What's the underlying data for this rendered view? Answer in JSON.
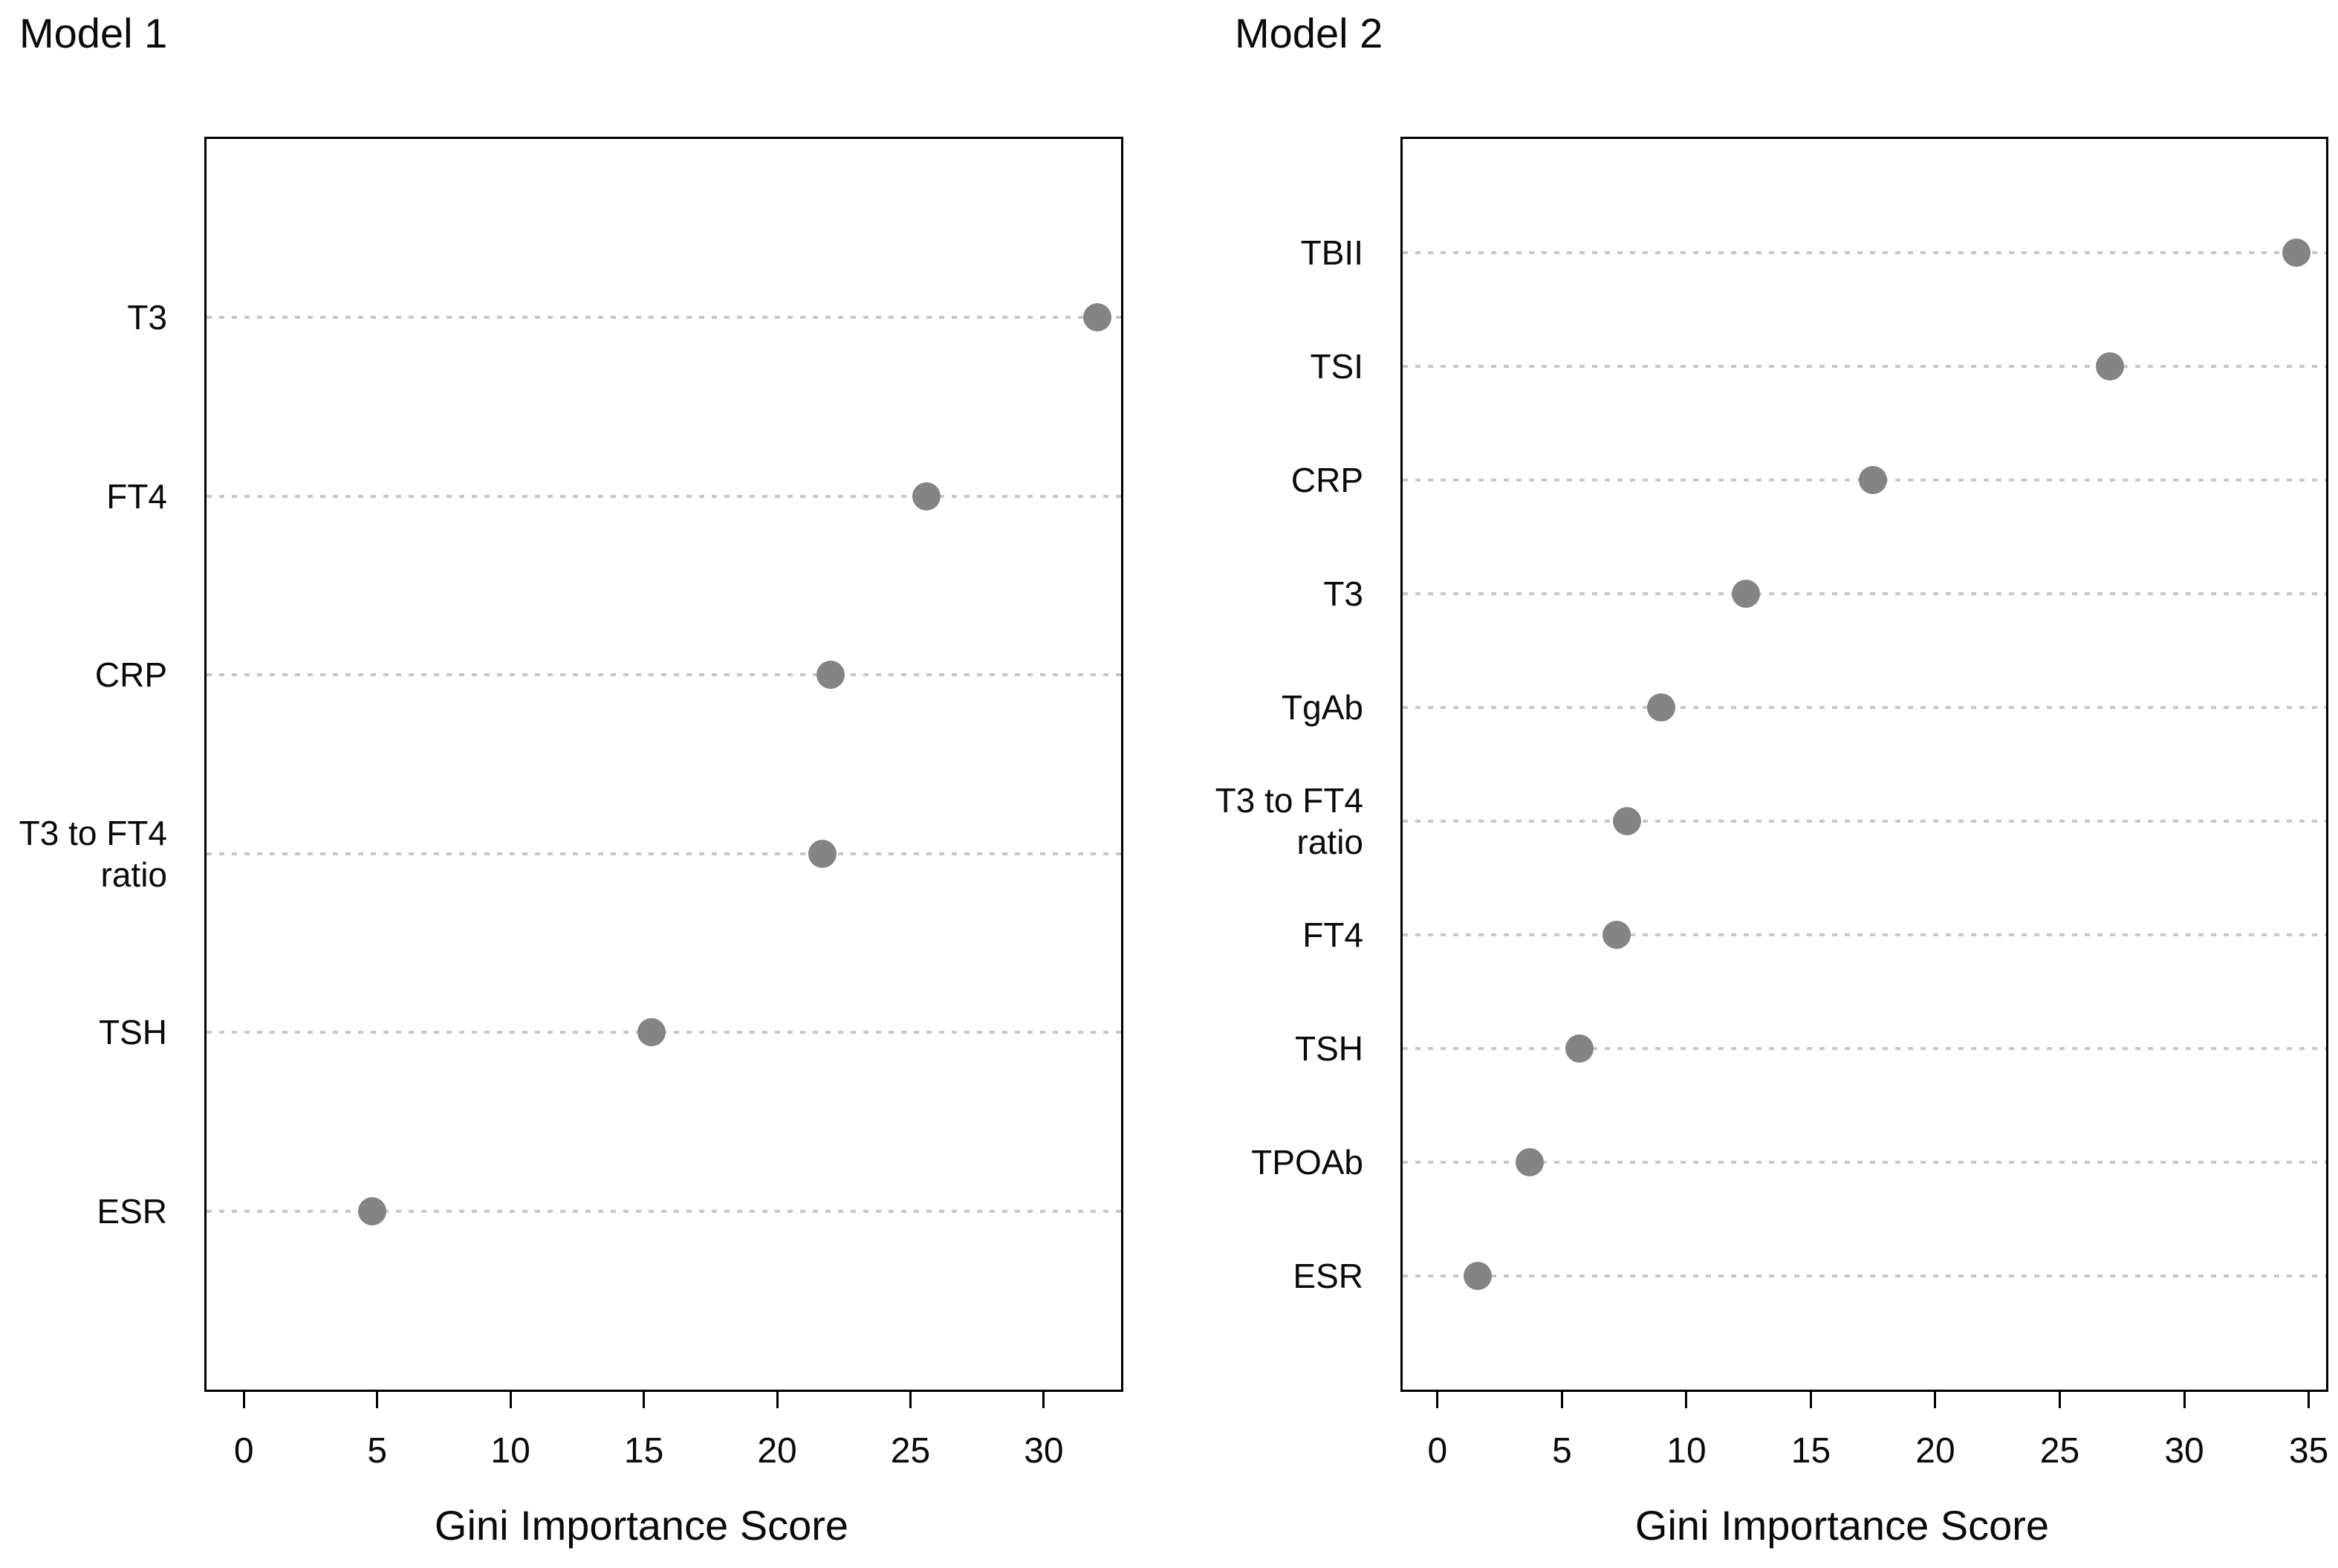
{
  "figure": {
    "background": "#ffffff"
  },
  "colors": {
    "dot": "#848484",
    "grid": "#c7c7c7",
    "axis": "#000000",
    "text": "#0a0a0a"
  },
  "chart_data": [
    {
      "type": "scatter",
      "variant": "cleveland-dot-plot",
      "title": "Model 1",
      "xlabel": "Gini Importance Score",
      "ylabel": "",
      "categories": [
        "T3",
        "FT4",
        "CRP",
        "T3 to FT4\nratio",
        "TSH",
        "ESR"
      ],
      "values": [
        32.0,
        25.6,
        22.0,
        21.7,
        15.3,
        4.8
      ],
      "ticks": [
        0,
        5,
        10,
        15,
        20,
        25,
        30
      ],
      "xlim": [
        -1.4,
        32.9
      ],
      "grid": "horizontal-dotted",
      "legend": "none"
    },
    {
      "type": "scatter",
      "variant": "cleveland-dot-plot",
      "title": "Model 2",
      "xlabel": "Gini Importance Score",
      "ylabel": "",
      "categories": [
        "TBII",
        "TSI",
        "CRP",
        "T3",
        "TgAb",
        "T3 to FT4\nratio",
        "FT4",
        "TSH",
        "TPOAb",
        "ESR"
      ],
      "values": [
        34.5,
        27.0,
        17.5,
        12.4,
        9.0,
        7.6,
        7.2,
        5.7,
        3.7,
        1.6
      ],
      "ticks": [
        0,
        5,
        10,
        15,
        20,
        25,
        30,
        35
      ],
      "xlim": [
        -1.4,
        35.7
      ],
      "grid": "horizontal-dotted",
      "legend": "none"
    }
  ]
}
